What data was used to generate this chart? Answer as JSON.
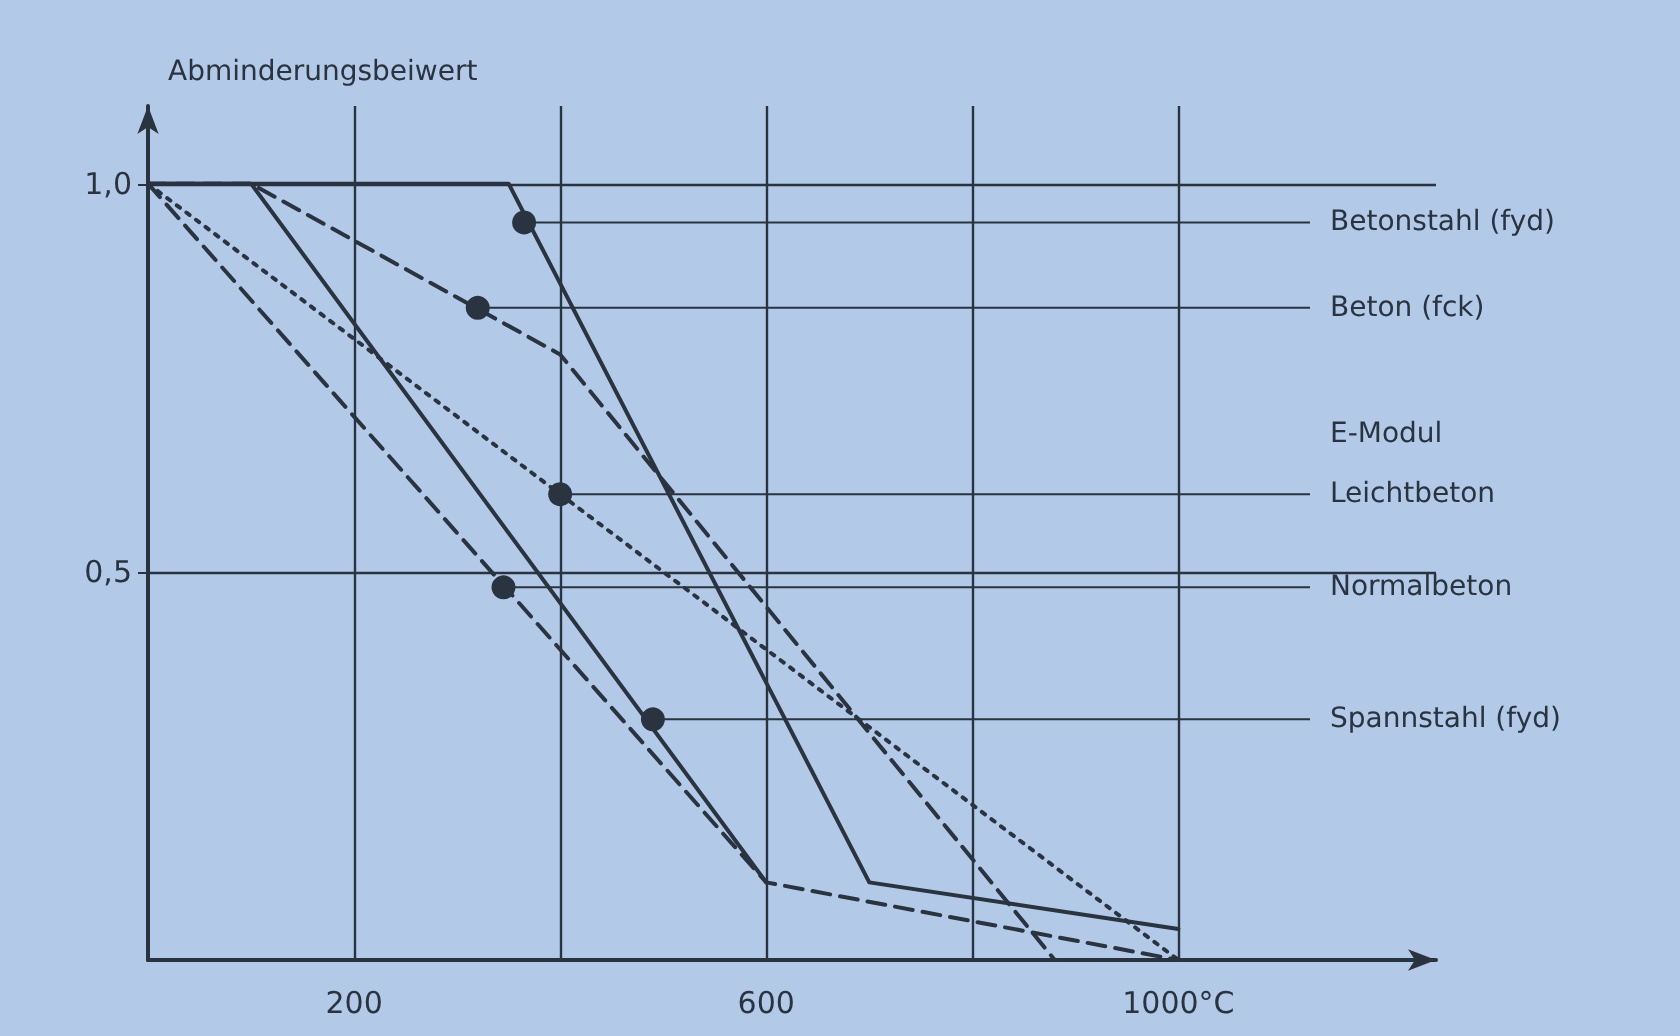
{
  "chart_data": {
    "type": "line",
    "ylabel": "Abminderungsbeiwert",
    "xlim": [
      0,
      1250
    ],
    "xticks": [
      {
        "value": 200,
        "label": "200"
      },
      {
        "value": 400,
        "label": null
      },
      {
        "value": 600,
        "label": "600"
      },
      {
        "value": 800,
        "label": null
      },
      {
        "value": 1000,
        "label": "1000°C"
      }
    ],
    "ylim": [
      0,
      1.1
    ],
    "yticks": [
      {
        "value": 0.5,
        "label": "0,5"
      },
      {
        "value": 1,
        "label": "1,0"
      }
    ],
    "grid": true,
    "marker": "none",
    "series": [
      {
        "color": "#2a3340",
        "line_style": "solid",
        "x": [
          0,
          350,
          700,
          1000
        ],
        "values": [
          1,
          1,
          0.1,
          0.04
        ]
      },
      {
        "color": "#2a3340",
        "line_style": "dashed",
        "x": [
          0,
          100,
          400,
          880
        ],
        "values": [
          1,
          1,
          0.78,
          0
        ]
      },
      {
        "color": "#2a3340",
        "line_style": "dotted",
        "x": [
          0,
          1000
        ],
        "values": [
          1,
          0
        ]
      },
      {
        "color": "#2a3340",
        "line_style": "dashed",
        "x": [
          0,
          600,
          1000
        ],
        "values": [
          1,
          0.1,
          0
        ]
      },
      {
        "color": "#2a3340",
        "line_style": "solid",
        "x": [
          0,
          100,
          600
        ],
        "values": [
          1,
          1,
          0.1
        ]
      }
    ],
    "annotations": [
      {
        "text": "Betonstahl (fyd)",
        "x": 365,
        "y": 0.95
      },
      {
        "text": "Beton (fck)",
        "x": 320,
        "y": 0.84
      },
      "E-Modul",
      {
        "text": "Leichtbeton",
        "x": 400,
        "y": 0.6
      },
      {
        "text": "Normalbeton",
        "x": 345,
        "y": 0.48
      },
      {
        "text": "Spannstahl (fyd)",
        "x": 490,
        "y": 0.31
      }
    ]
  }
}
